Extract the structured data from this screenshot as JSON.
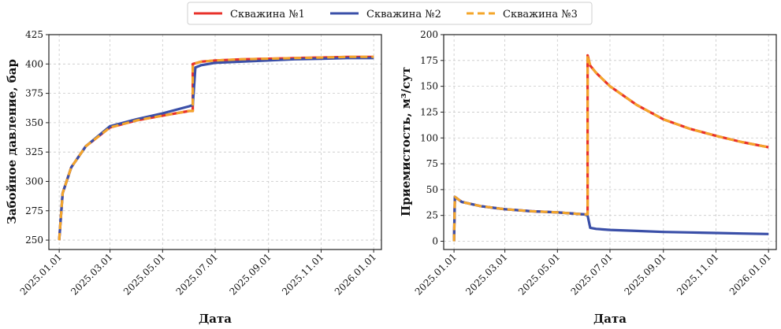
{
  "legend": {
    "placement": "top-center",
    "entries": [
      {
        "label": "Скважина №1",
        "color": "#e8312a",
        "dash": "solid"
      },
      {
        "label": "Скважина №2",
        "color": "#3a4fa8",
        "dash": "solid"
      },
      {
        "label": "Скважина №3",
        "color": "#f4a62a",
        "dash": "dashed"
      }
    ]
  },
  "chart_data": [
    {
      "type": "line",
      "xlabel": "Дата",
      "ylabel": "Забойное давление, бар",
      "xlim": [
        "2024-12-20",
        "2026-01-10"
      ],
      "ylim": [
        242,
        425
      ],
      "xticks": [
        "2025.01.01",
        "2025.03.01",
        "2025.05.01",
        "2025.07.01",
        "2025.09.01",
        "2025.11.01",
        "2026.01.01"
      ],
      "yticks": [
        250,
        275,
        300,
        325,
        350,
        375,
        400,
        425
      ],
      "grid": true,
      "series": [
        {
          "name": "Скважина №1",
          "color": "#e8312a",
          "dash": "solid",
          "x": [
            "2025-01-01",
            "2025-01-05",
            "2025-01-15",
            "2025-02-01",
            "2025-03-01",
            "2025-04-01",
            "2025-05-01",
            "2025-06-01",
            "2025-06-05",
            "2025-06-05",
            "2025-06-15",
            "2025-07-01",
            "2025-08-01",
            "2025-09-01",
            "2025-10-01",
            "2025-11-01",
            "2025-12-01",
            "2026-01-01"
          ],
          "y": [
            250,
            290,
            312,
            330,
            346,
            352,
            356,
            360,
            360,
            400,
            402,
            403,
            404,
            404.5,
            405,
            405.5,
            406,
            406
          ]
        },
        {
          "name": "Скважина №2",
          "color": "#3a4fa8",
          "dash": "solid",
          "x": [
            "2025-01-01",
            "2025-01-05",
            "2025-01-15",
            "2025-02-01",
            "2025-03-01",
            "2025-04-01",
            "2025-05-01",
            "2025-06-01",
            "2025-06-05",
            "2025-06-08",
            "2025-06-15",
            "2025-07-01",
            "2025-08-01",
            "2025-09-01",
            "2025-10-01",
            "2025-11-01",
            "2025-12-01",
            "2026-01-01"
          ],
          "y": [
            250,
            290,
            312,
            330,
            347,
            353,
            358,
            364,
            365,
            397,
            399,
            401,
            402,
            403,
            404,
            404.5,
            405,
            405
          ]
        },
        {
          "name": "Скважина №3",
          "color": "#f4a62a",
          "dash": "dashed",
          "x": [
            "2025-01-01",
            "2025-01-05",
            "2025-01-15",
            "2025-02-01",
            "2025-03-01",
            "2025-04-01",
            "2025-05-01",
            "2025-06-01",
            "2025-06-05",
            "2025-06-05",
            "2025-06-15",
            "2025-07-01",
            "2025-08-01",
            "2025-09-01",
            "2025-10-01",
            "2025-11-01",
            "2025-12-01",
            "2026-01-01"
          ],
          "y": [
            250,
            290,
            312,
            330,
            346,
            352,
            356,
            360,
            360,
            400,
            402,
            403,
            404,
            404.5,
            405,
            405.5,
            406,
            406
          ]
        }
      ]
    },
    {
      "type": "line",
      "xlabel": "Дата",
      "ylabel": "Приемистость, м³/сут",
      "xlim": [
        "2024-12-20",
        "2026-01-10"
      ],
      "ylim": [
        -8,
        200
      ],
      "xticks": [
        "2025.01.01",
        "2025.03.01",
        "2025.05.01",
        "2025.07.01",
        "2025.09.01",
        "2025.11.01",
        "2026.01.01"
      ],
      "yticks": [
        0,
        25,
        50,
        75,
        100,
        125,
        150,
        175,
        200
      ],
      "grid": true,
      "series": [
        {
          "name": "Скважина №1",
          "color": "#e8312a",
          "dash": "solid",
          "x": [
            "2025-01-01",
            "2025-01-02",
            "2025-01-10",
            "2025-02-01",
            "2025-03-01",
            "2025-04-01",
            "2025-05-01",
            "2025-06-01",
            "2025-06-05",
            "2025-06-05",
            "2025-06-08",
            "2025-06-15",
            "2025-07-01",
            "2025-08-01",
            "2025-09-01",
            "2025-10-01",
            "2025-11-01",
            "2025-12-01",
            "2026-01-01"
          ],
          "y": [
            0,
            43,
            38,
            34,
            31,
            29,
            28,
            26,
            26,
            180,
            170,
            163,
            150,
            132,
            118,
            109,
            102,
            96,
            91
          ]
        },
        {
          "name": "Скважина №2",
          "color": "#3a4fa8",
          "dash": "solid",
          "x": [
            "2025-01-01",
            "2025-01-02",
            "2025-01-10",
            "2025-02-01",
            "2025-03-01",
            "2025-04-01",
            "2025-05-01",
            "2025-06-01",
            "2025-06-05",
            "2025-06-08",
            "2025-06-15",
            "2025-07-01",
            "2025-08-01",
            "2025-09-01",
            "2025-10-01",
            "2025-11-01",
            "2025-12-01",
            "2026-01-01"
          ],
          "y": [
            0,
            43,
            38,
            34,
            31,
            29,
            28,
            26,
            25,
            13,
            12,
            11,
            10,
            9,
            8.5,
            8,
            7.5,
            7
          ]
        },
        {
          "name": "Скважина №3",
          "color": "#f4a62a",
          "dash": "dashed",
          "x": [
            "2025-01-01",
            "2025-01-02",
            "2025-01-10",
            "2025-02-01",
            "2025-03-01",
            "2025-04-01",
            "2025-05-01",
            "2025-06-01",
            "2025-06-05",
            "2025-06-05",
            "2025-06-08",
            "2025-06-15",
            "2025-07-01",
            "2025-08-01",
            "2025-09-01",
            "2025-10-01",
            "2025-11-01",
            "2025-12-01",
            "2026-01-01"
          ],
          "y": [
            0,
            43,
            38,
            34,
            31,
            29,
            28,
            26,
            26,
            180,
            170,
            163,
            150,
            132,
            118,
            109,
            102,
            96,
            91
          ]
        }
      ]
    }
  ]
}
